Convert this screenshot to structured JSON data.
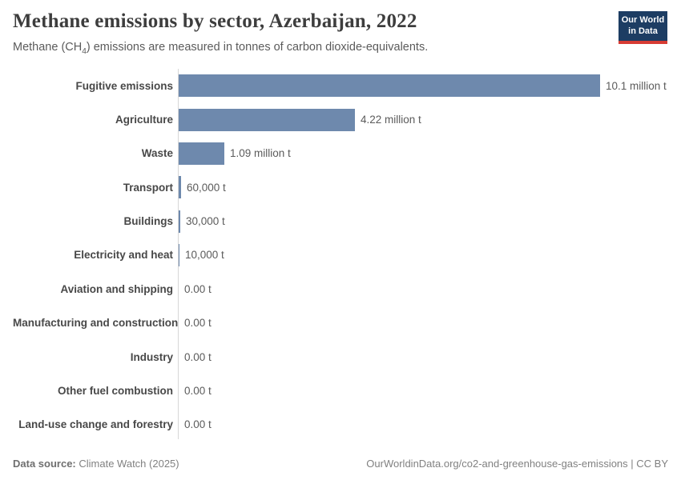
{
  "header": {
    "title": "Methane emissions by sector, Azerbaijan, 2022",
    "subtitle_pre": "Methane (CH",
    "subtitle_sub": "4",
    "subtitle_post": ") emissions are measured in tonnes of carbon dioxide-equivalents."
  },
  "logo": {
    "line1": "Our World",
    "line2": "in Data"
  },
  "chart_data": {
    "type": "bar",
    "orientation": "horizontal",
    "title": "Methane emissions by sector, Azerbaijan, 2022",
    "subtitle": "Methane (CH₄) emissions are measured in tonnes of carbon dioxide-equivalents.",
    "unit": "tonnes of carbon dioxide-equivalents",
    "xlabel": "",
    "ylabel": "",
    "xlim": [
      0,
      10100000
    ],
    "grid": false,
    "legend": false,
    "categories": [
      "Fugitive emissions",
      "Agriculture",
      "Waste",
      "Transport",
      "Buildings",
      "Electricity and heat",
      "Aviation and shipping",
      "Manufacturing and construction",
      "Industry",
      "Other fuel combustion",
      "Land-use change and forestry"
    ],
    "values": [
      10100000,
      4220000,
      1090000,
      60000,
      30000,
      10000,
      0,
      0,
      0,
      0,
      0
    ],
    "value_labels": [
      "10.1 million t",
      "4.22 million t",
      "1.09 million t",
      "60,000 t",
      "30,000 t",
      "10,000 t",
      "0.00 t",
      "0.00 t",
      "0.00 t",
      "0.00 t",
      "0.00 t"
    ]
  },
  "footer": {
    "source_label": "Data source:",
    "source_value": "Climate Watch (2025)",
    "credit": "OurWorldinData.org/co2-and-greenhouse-gas-emissions | CC BY"
  },
  "colors": {
    "bar": "#6e89ad",
    "logo_bg": "#1d3d63",
    "logo_accent": "#d73c34",
    "axis_line": "#d7d7d7",
    "title_text": "#3d3d3d",
    "subtitle_text": "#5b5b5b",
    "label_text": "#484848",
    "value_text": "#5b5b5b",
    "footer_text": "#818181"
  }
}
